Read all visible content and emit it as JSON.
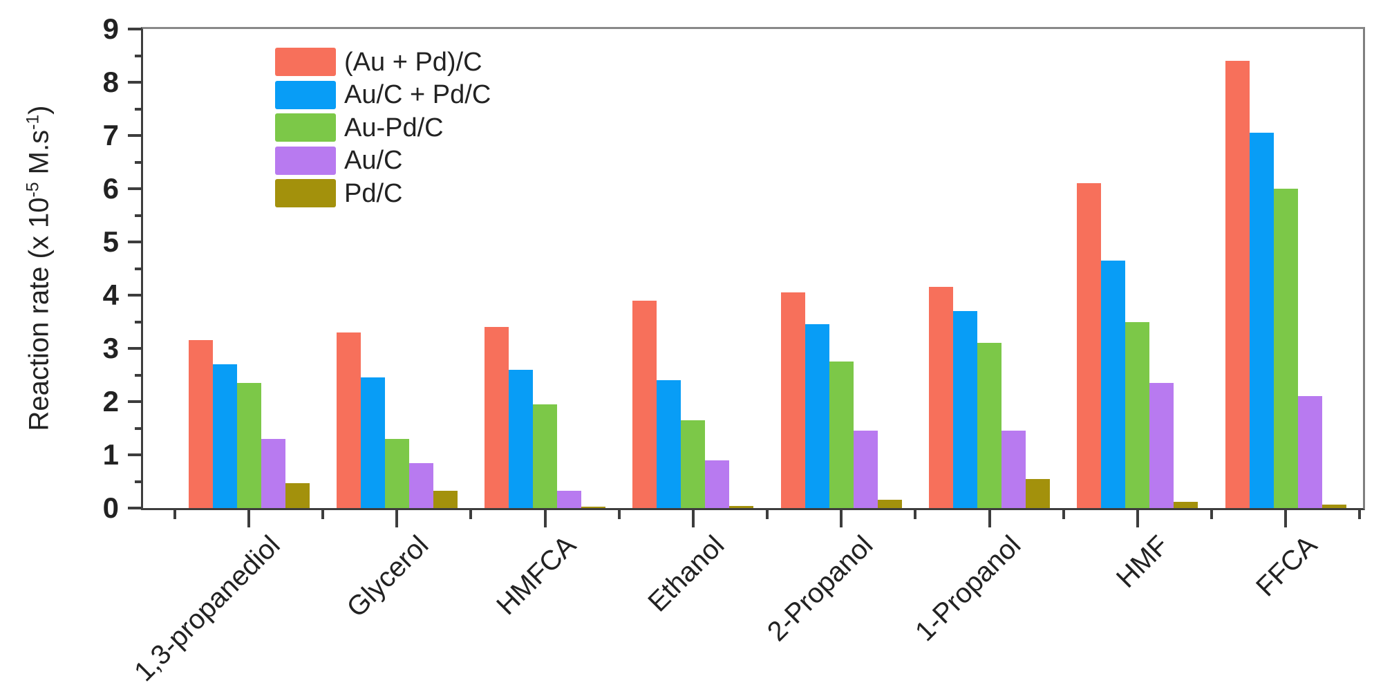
{
  "chart_data": {
    "type": "bar",
    "title": "",
    "xlabel": "",
    "ylabel_parts": [
      "Reaction rate (x 10",
      "-5",
      " M.s",
      "-1",
      ")"
    ],
    "ylim": [
      0,
      9
    ],
    "y_major_tick_step": 1,
    "y_minor_tick_step": 0.5,
    "grid": "off",
    "legend_position": "top-left-inside",
    "categories": [
      "1,3-propanediol",
      "Glycerol",
      "HMFCA",
      "Ethanol",
      "2-Propanol",
      "1-Propanol",
      "HMF",
      "FFCA"
    ],
    "y_tick_labels": [
      "0",
      "1",
      "2",
      "3",
      "4",
      "5",
      "6",
      "7",
      "8",
      "9"
    ],
    "series": [
      {
        "name": "(Au + Pd)/C",
        "color": "#F7705B",
        "values": [
          3.15,
          3.3,
          3.4,
          3.9,
          4.05,
          4.15,
          6.1,
          8.4
        ]
      },
      {
        "name": "Au/C + Pd/C",
        "color": "#089DF6",
        "values": [
          2.7,
          2.45,
          2.6,
          2.4,
          3.45,
          3.7,
          4.65,
          7.05
        ]
      },
      {
        "name": "Au-Pd/C",
        "color": "#7CC848",
        "values": [
          2.35,
          1.3,
          1.95,
          1.65,
          2.75,
          3.1,
          3.5,
          6.0
        ]
      },
      {
        "name": "Au/C",
        "color": "#B87AF0",
        "values": [
          1.3,
          0.85,
          0.33,
          0.9,
          1.45,
          1.45,
          2.35,
          2.1
        ]
      },
      {
        "name": "Pd/C",
        "color": "#A3910C",
        "values": [
          0.47,
          0.32,
          0.03,
          0.04,
          0.15,
          0.55,
          0.12,
          0.06
        ]
      }
    ],
    "colors": {
      "axis": "#3d3d3d",
      "frame_top_right": "#7f7f7f",
      "text": "#222222",
      "background": "#ffffff"
    }
  }
}
